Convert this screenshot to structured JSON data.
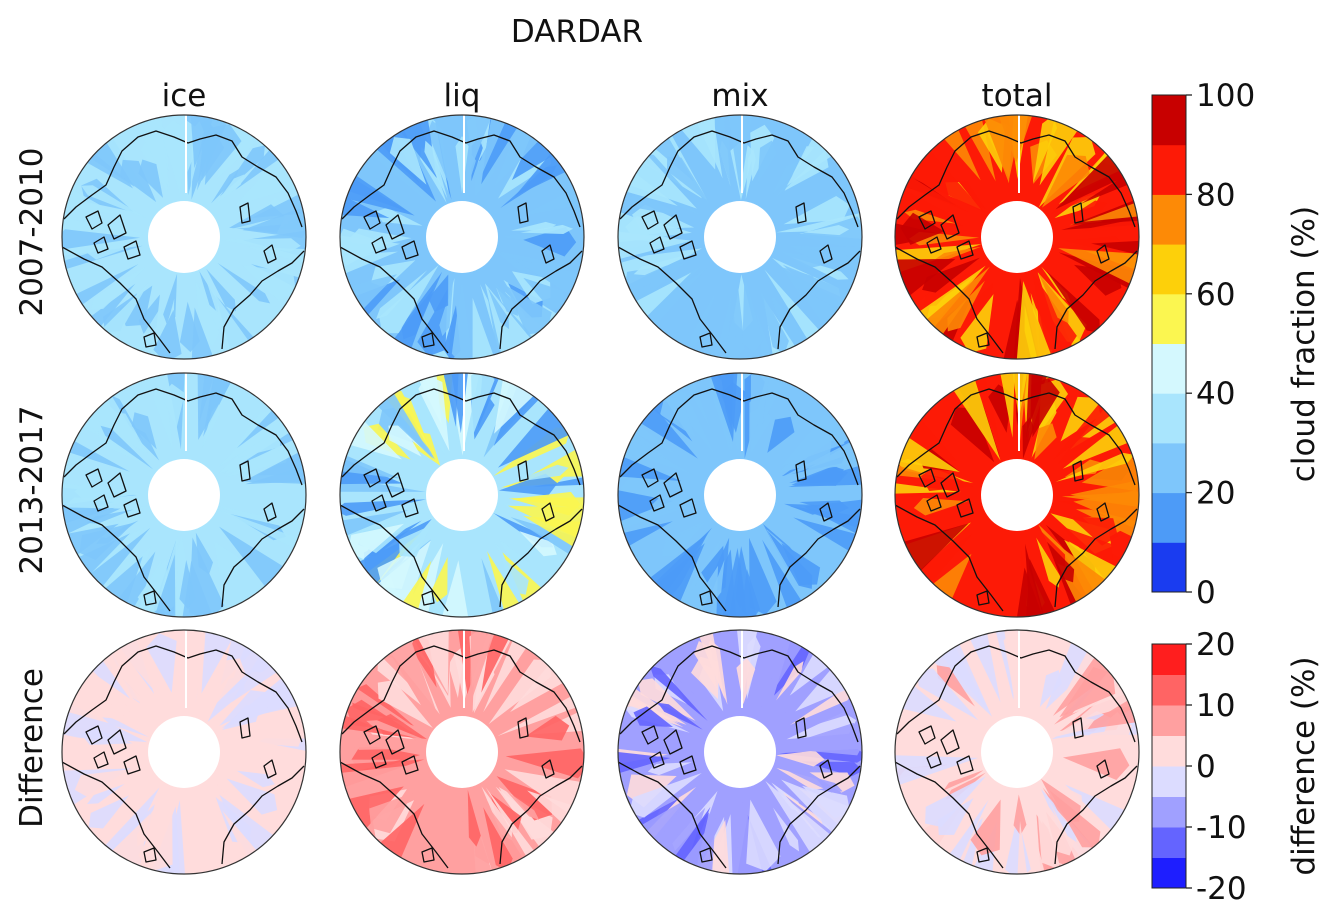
{
  "figure": {
    "title": "DARDAR",
    "columns": [
      "ice",
      "liq",
      "mix",
      "total"
    ],
    "rows": [
      "2007-2010",
      "2013-2017",
      "Difference"
    ]
  },
  "colorbars": {
    "main": {
      "label": "cloud fraction (%)",
      "ticks": [
        "100",
        "80",
        "60",
        "40",
        "20",
        "0"
      ],
      "levels": [
        0,
        10,
        20,
        30,
        40,
        50,
        60,
        70,
        80,
        90,
        100
      ],
      "colors": [
        "#1a3cf0",
        "#4d9bf7",
        "#7ec6fb",
        "#a9e5fd",
        "#d4f8fe",
        "#fbf650",
        "#fdd00a",
        "#fd8a06",
        "#fd1a06",
        "#c80000"
      ]
    },
    "diff": {
      "label": "difference (%)",
      "ticks": [
        "20",
        "10",
        "0",
        "-10",
        "-20"
      ],
      "levels": [
        -20,
        -15,
        -10,
        -5,
        0,
        5,
        10,
        15,
        20
      ],
      "colors": [
        "#1e1eff",
        "#6464ff",
        "#a0a0ff",
        "#dcdcff",
        "#ffdcdc",
        "#ffa0a0",
        "#ff6464",
        "#ff1e1e"
      ]
    }
  },
  "chart_data": {
    "type": "heatmap",
    "projection": "north polar stereographic",
    "unit": "%",
    "panels": [
      {
        "row": "2007-2010",
        "column": "ice",
        "colorbar": "cloud fraction (%)",
        "approx_range": [
          20,
          40
        ],
        "dominant": 30
      },
      {
        "row": "2007-2010",
        "column": "liq",
        "colorbar": "cloud fraction (%)",
        "approx_range": [
          10,
          40
        ],
        "dominant": 25
      },
      {
        "row": "2007-2010",
        "column": "mix",
        "colorbar": "cloud fraction (%)",
        "approx_range": [
          20,
          40
        ],
        "dominant": 25
      },
      {
        "row": "2007-2010",
        "column": "total",
        "colorbar": "cloud fraction (%)",
        "approx_range": [
          60,
          100
        ],
        "dominant": 85
      },
      {
        "row": "2013-2017",
        "column": "ice",
        "colorbar": "cloud fraction (%)",
        "approx_range": [
          20,
          40
        ],
        "dominant": 30
      },
      {
        "row": "2013-2017",
        "column": "liq",
        "colorbar": "cloud fraction (%)",
        "approx_range": [
          10,
          60
        ],
        "dominant": 30
      },
      {
        "row": "2013-2017",
        "column": "mix",
        "colorbar": "cloud fraction (%)",
        "approx_range": [
          10,
          30
        ],
        "dominant": 20
      },
      {
        "row": "2013-2017",
        "column": "total",
        "colorbar": "cloud fraction (%)",
        "approx_range": [
          60,
          100
        ],
        "dominant": 85
      },
      {
        "row": "Difference",
        "column": "ice",
        "colorbar": "difference (%)",
        "approx_range": [
          -5,
          5
        ],
        "dominant": 2
      },
      {
        "row": "Difference",
        "column": "liq",
        "colorbar": "difference (%)",
        "approx_range": [
          0,
          15
        ],
        "dominant": 7
      },
      {
        "row": "Difference",
        "column": "mix",
        "colorbar": "difference (%)",
        "approx_range": [
          -15,
          5
        ],
        "dominant": -6
      },
      {
        "row": "Difference",
        "column": "total",
        "colorbar": "difference (%)",
        "approx_range": [
          -5,
          10
        ],
        "dominant": 1
      }
    ]
  }
}
